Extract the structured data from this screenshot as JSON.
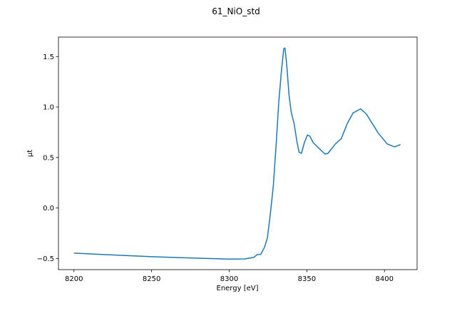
{
  "chart_data": {
    "type": "line",
    "title": "61_NiO_std",
    "xlabel": "Energy [eV]",
    "ylabel": "μt",
    "xlim": [
      8190,
      8421
    ],
    "ylim": [
      -0.611,
      1.693
    ],
    "xticks": [
      8200,
      8250,
      8300,
      8350,
      8400
    ],
    "yticks": [
      -0.5,
      0.0,
      0.5,
      1.0,
      1.5
    ],
    "xtick_labels": [
      "8200",
      "8250",
      "8300",
      "8350",
      "8400"
    ],
    "ytick_labels": [
      "−0.5",
      "0.0",
      "0.5",
      "1.0",
      "1.5"
    ],
    "grid": false,
    "color": "#1f77b4",
    "series": [
      {
        "x": [
          8200,
          8250,
          8300,
          8310,
          8315.7,
          8318,
          8320.3,
          8322.7,
          8324.6,
          8326.5,
          8328.4,
          8330.3,
          8331.9,
          8333.6,
          8335.1,
          8335.9,
          8337,
          8338.5,
          8339.9,
          8341.8,
          8343.7,
          8345,
          8346.5,
          8348.4,
          8350.3,
          8351.9,
          8354.1,
          8358,
          8361.7,
          8363.6,
          8368.4,
          8372.2,
          8376,
          8379.8,
          8384.6,
          8388.4,
          8396,
          8401.7,
          8406.5,
          8410.3
        ],
        "y": [
          -0.448,
          -0.483,
          -0.507,
          -0.505,
          -0.49,
          -0.462,
          -0.46,
          -0.39,
          -0.295,
          -0.06,
          0.223,
          0.647,
          1.047,
          1.354,
          1.578,
          1.585,
          1.425,
          1.118,
          0.953,
          0.836,
          0.647,
          0.553,
          0.541,
          0.647,
          0.722,
          0.713,
          0.647,
          0.588,
          0.534,
          0.541,
          0.635,
          0.687,
          0.836,
          0.942,
          0.982,
          0.93,
          0.741,
          0.635,
          0.605,
          0.628
        ]
      }
    ]
  }
}
